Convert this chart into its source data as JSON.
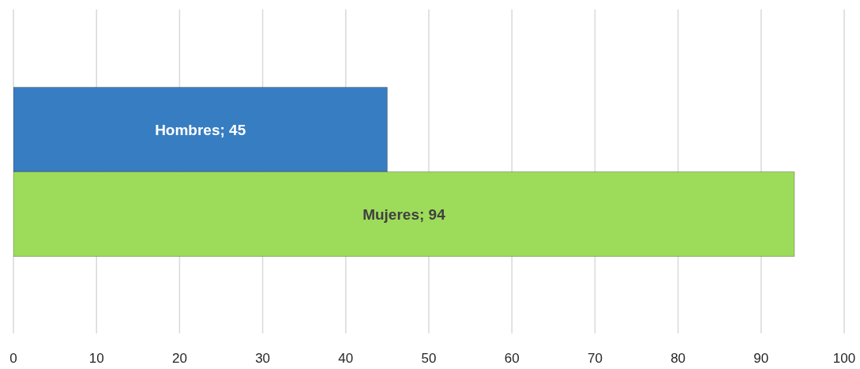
{
  "chart_data": {
    "type": "bar",
    "orientation": "horizontal",
    "categories": [
      null
    ],
    "series": [
      {
        "name": "Hombres",
        "color": "#377dc2",
        "values": [
          45
        ],
        "value_labels": [
          "; 45"
        ]
      },
      {
        "name": "Mujeres",
        "color": "#9ddc5a",
        "values": [
          94
        ],
        "value_labels": [
          "; 94"
        ]
      }
    ],
    "xlim": [
      0,
      100
    ],
    "xticks": [
      0,
      10,
      20,
      30,
      40,
      50,
      60,
      70,
      80,
      90,
      100
    ],
    "grid": "x"
  }
}
